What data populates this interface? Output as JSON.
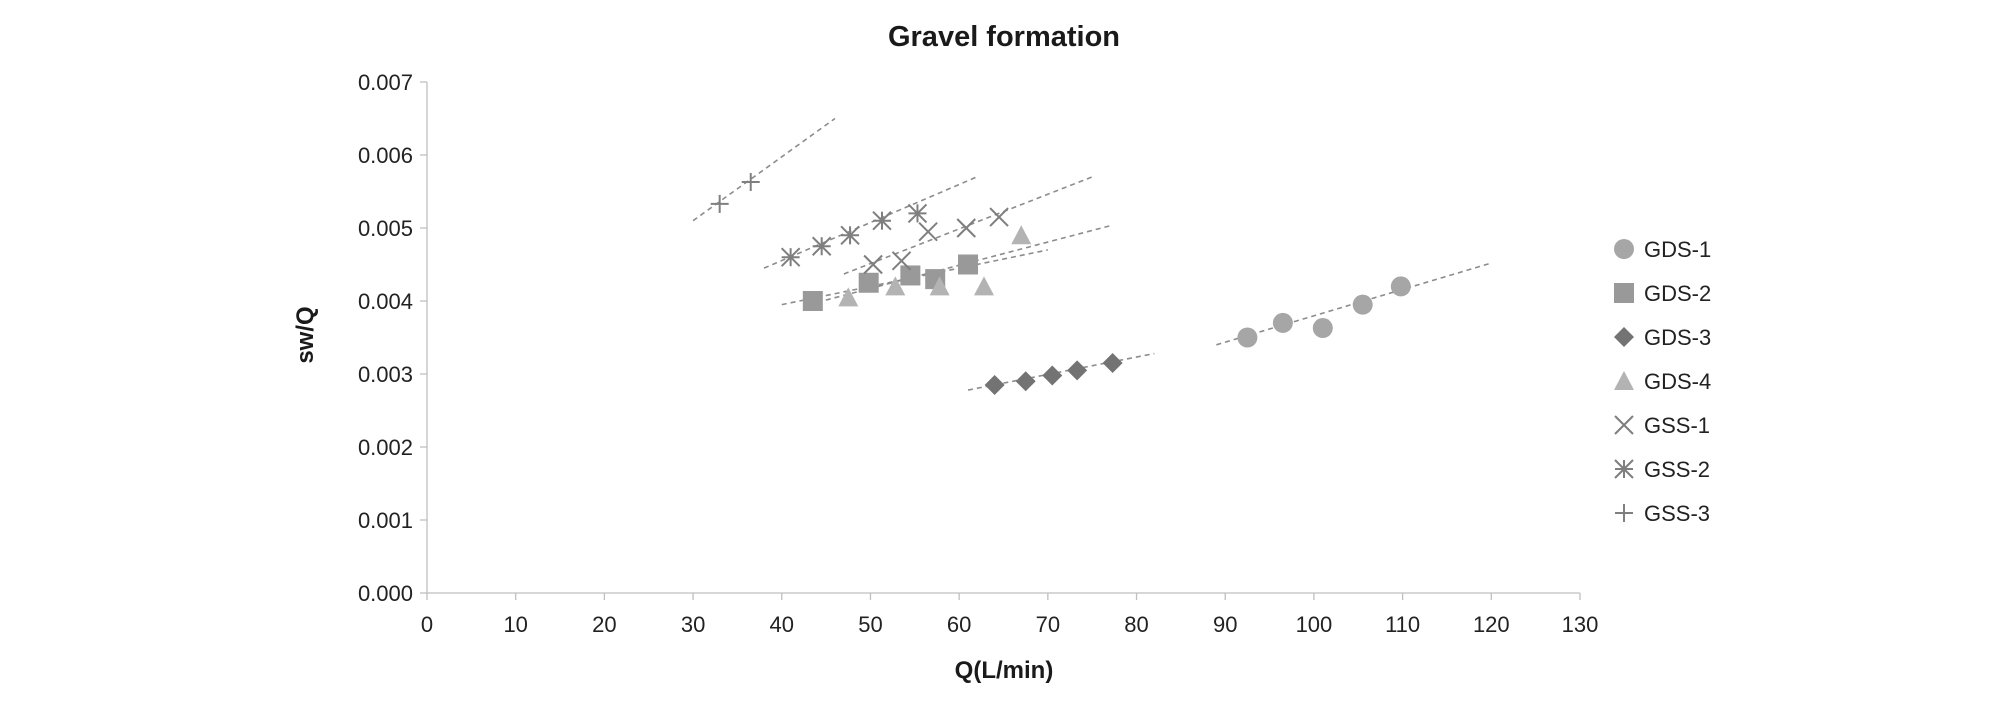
{
  "chart_data": {
    "type": "scatter",
    "title": "Gravel formation",
    "xlabel": "Q(L/min)",
    "ylabel": "sw/Q",
    "xlim": [
      0,
      130
    ],
    "ylim": [
      0,
      0.007
    ],
    "x_ticks": [
      0,
      10,
      20,
      30,
      40,
      50,
      60,
      70,
      80,
      90,
      100,
      110,
      120,
      130
    ],
    "x_tick_labels": [
      "0",
      "10",
      "20",
      "30",
      "40",
      "50",
      "60",
      "70",
      "80",
      "90",
      "100",
      "110",
      "120",
      "130"
    ],
    "y_ticks": [
      0,
      0.001,
      0.002,
      0.003,
      0.004,
      0.005,
      0.006,
      0.007
    ],
    "y_tick_labels": [
      "0.000",
      "0.001",
      "0.002",
      "0.003",
      "0.004",
      "0.005",
      "0.006",
      "0.007"
    ],
    "grid": false,
    "legend_position": "right",
    "trendlines": "linear, dashed",
    "series": [
      {
        "name": "GDS-1",
        "marker": "circle",
        "color": "#a6a6a6",
        "x": [
          92.5,
          96.5,
          101,
          105.5,
          109.8
        ],
        "y": [
          0.0035,
          0.0037,
          0.00363,
          0.00395,
          0.0042
        ],
        "trend_x": [
          89,
          120
        ],
        "trend_y": [
          0.0034,
          0.00452
        ]
      },
      {
        "name": "GDS-2",
        "marker": "square",
        "color": "#999999",
        "x": [
          43.5,
          49.8,
          54.5,
          57.3,
          61
        ],
        "y": [
          0.004,
          0.00425,
          0.00435,
          0.0043,
          0.0045
        ],
        "trend_x": [
          40,
          70
        ],
        "trend_y": [
          0.00395,
          0.0047
        ]
      },
      {
        "name": "GDS-3",
        "marker": "diamond",
        "color": "#737373",
        "x": [
          64,
          67.5,
          70.5,
          73.3,
          77.3
        ],
        "y": [
          0.00285,
          0.0029,
          0.00298,
          0.00305,
          0.00315
        ],
        "trend_x": [
          61,
          82
        ],
        "trend_y": [
          0.00278,
          0.00328
        ]
      },
      {
        "name": "GDS-4",
        "marker": "triangle",
        "color": "#b3b3b3",
        "x": [
          47.5,
          52.8,
          57.8,
          62.8,
          67
        ],
        "y": [
          0.00405,
          0.0042,
          0.0042,
          0.0042,
          0.0049
        ],
        "trend_x": [
          43,
          77
        ],
        "trend_y": [
          0.00395,
          0.00503
        ]
      },
      {
        "name": "GSS-1",
        "marker": "x",
        "color": "#7f7f7f",
        "x": [
          50.3,
          53.5,
          56.5,
          60.8,
          64.5
        ],
        "y": [
          0.0045,
          0.00455,
          0.00495,
          0.005,
          0.00515
        ],
        "trend_x": [
          47,
          75
        ],
        "trend_y": [
          0.00437,
          0.0057
        ]
      },
      {
        "name": "GSS-2",
        "marker": "asterisk",
        "color": "#7f7f7f",
        "x": [
          41,
          44.5,
          47.7,
          51.3,
          55.3
        ],
        "y": [
          0.0046,
          0.00475,
          0.0049,
          0.0051,
          0.0052
        ],
        "trend_x": [
          38,
          62
        ],
        "trend_y": [
          0.00445,
          0.0057
        ]
      },
      {
        "name": "GSS-3",
        "marker": "plus",
        "color": "#7f7f7f",
        "x": [
          33,
          36.5
        ],
        "y": [
          0.00533,
          0.00563
        ],
        "trend_x": [
          30,
          46
        ],
        "trend_y": [
          0.0051,
          0.0065
        ]
      }
    ]
  }
}
